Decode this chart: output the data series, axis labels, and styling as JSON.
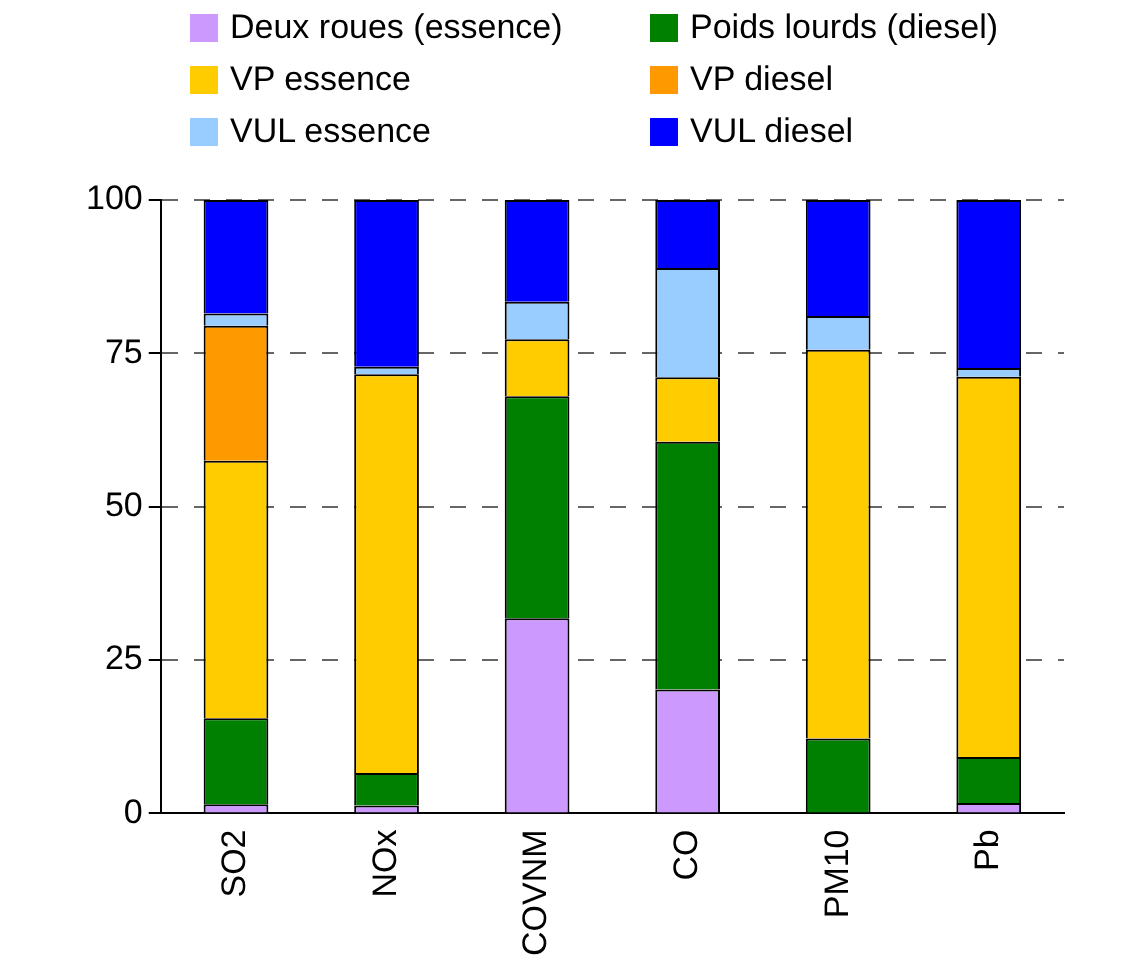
{
  "chart_data": {
    "type": "bar",
    "stacked": true,
    "categories": [
      "SO2",
      "NOx",
      "COVNM",
      "CO",
      "PM10",
      "Pb"
    ],
    "series": [
      {
        "name": "Deux roues (essence)",
        "color": "#cc99ff",
        "values": [
          1.5,
          1.3,
          31.8,
          20.2,
          null,
          1.7
        ]
      },
      {
        "name": "Poids lourds (diesel)",
        "color": "#008000",
        "values": [
          14,
          5.3,
          36.2,
          40.4,
          12.2,
          7.5
        ]
      },
      {
        "name": "VP essence",
        "color": "#ffcc00",
        "values": [
          42,
          65,
          9.3,
          10.5,
          63.4,
          62
        ]
      },
      {
        "name": "VP diesel",
        "color": "#ff9900",
        "values": [
          22,
          0,
          0,
          0,
          0,
          0
        ]
      },
      {
        "name": "VUL essence",
        "color": "#99ccff",
        "values": [
          2,
          1.2,
          6.1,
          17.8,
          5.5,
          1.4
        ]
      },
      {
        "name": "VUL diesel",
        "color": "#0000ff",
        "values": [
          18.5,
          27.2,
          16.6,
          11.1,
          18.9,
          27.4
        ]
      }
    ],
    "ylim": [
      0,
      100
    ],
    "yticks": [
      0,
      25,
      50,
      75,
      100
    ],
    "grid": "y",
    "legend": "top"
  }
}
